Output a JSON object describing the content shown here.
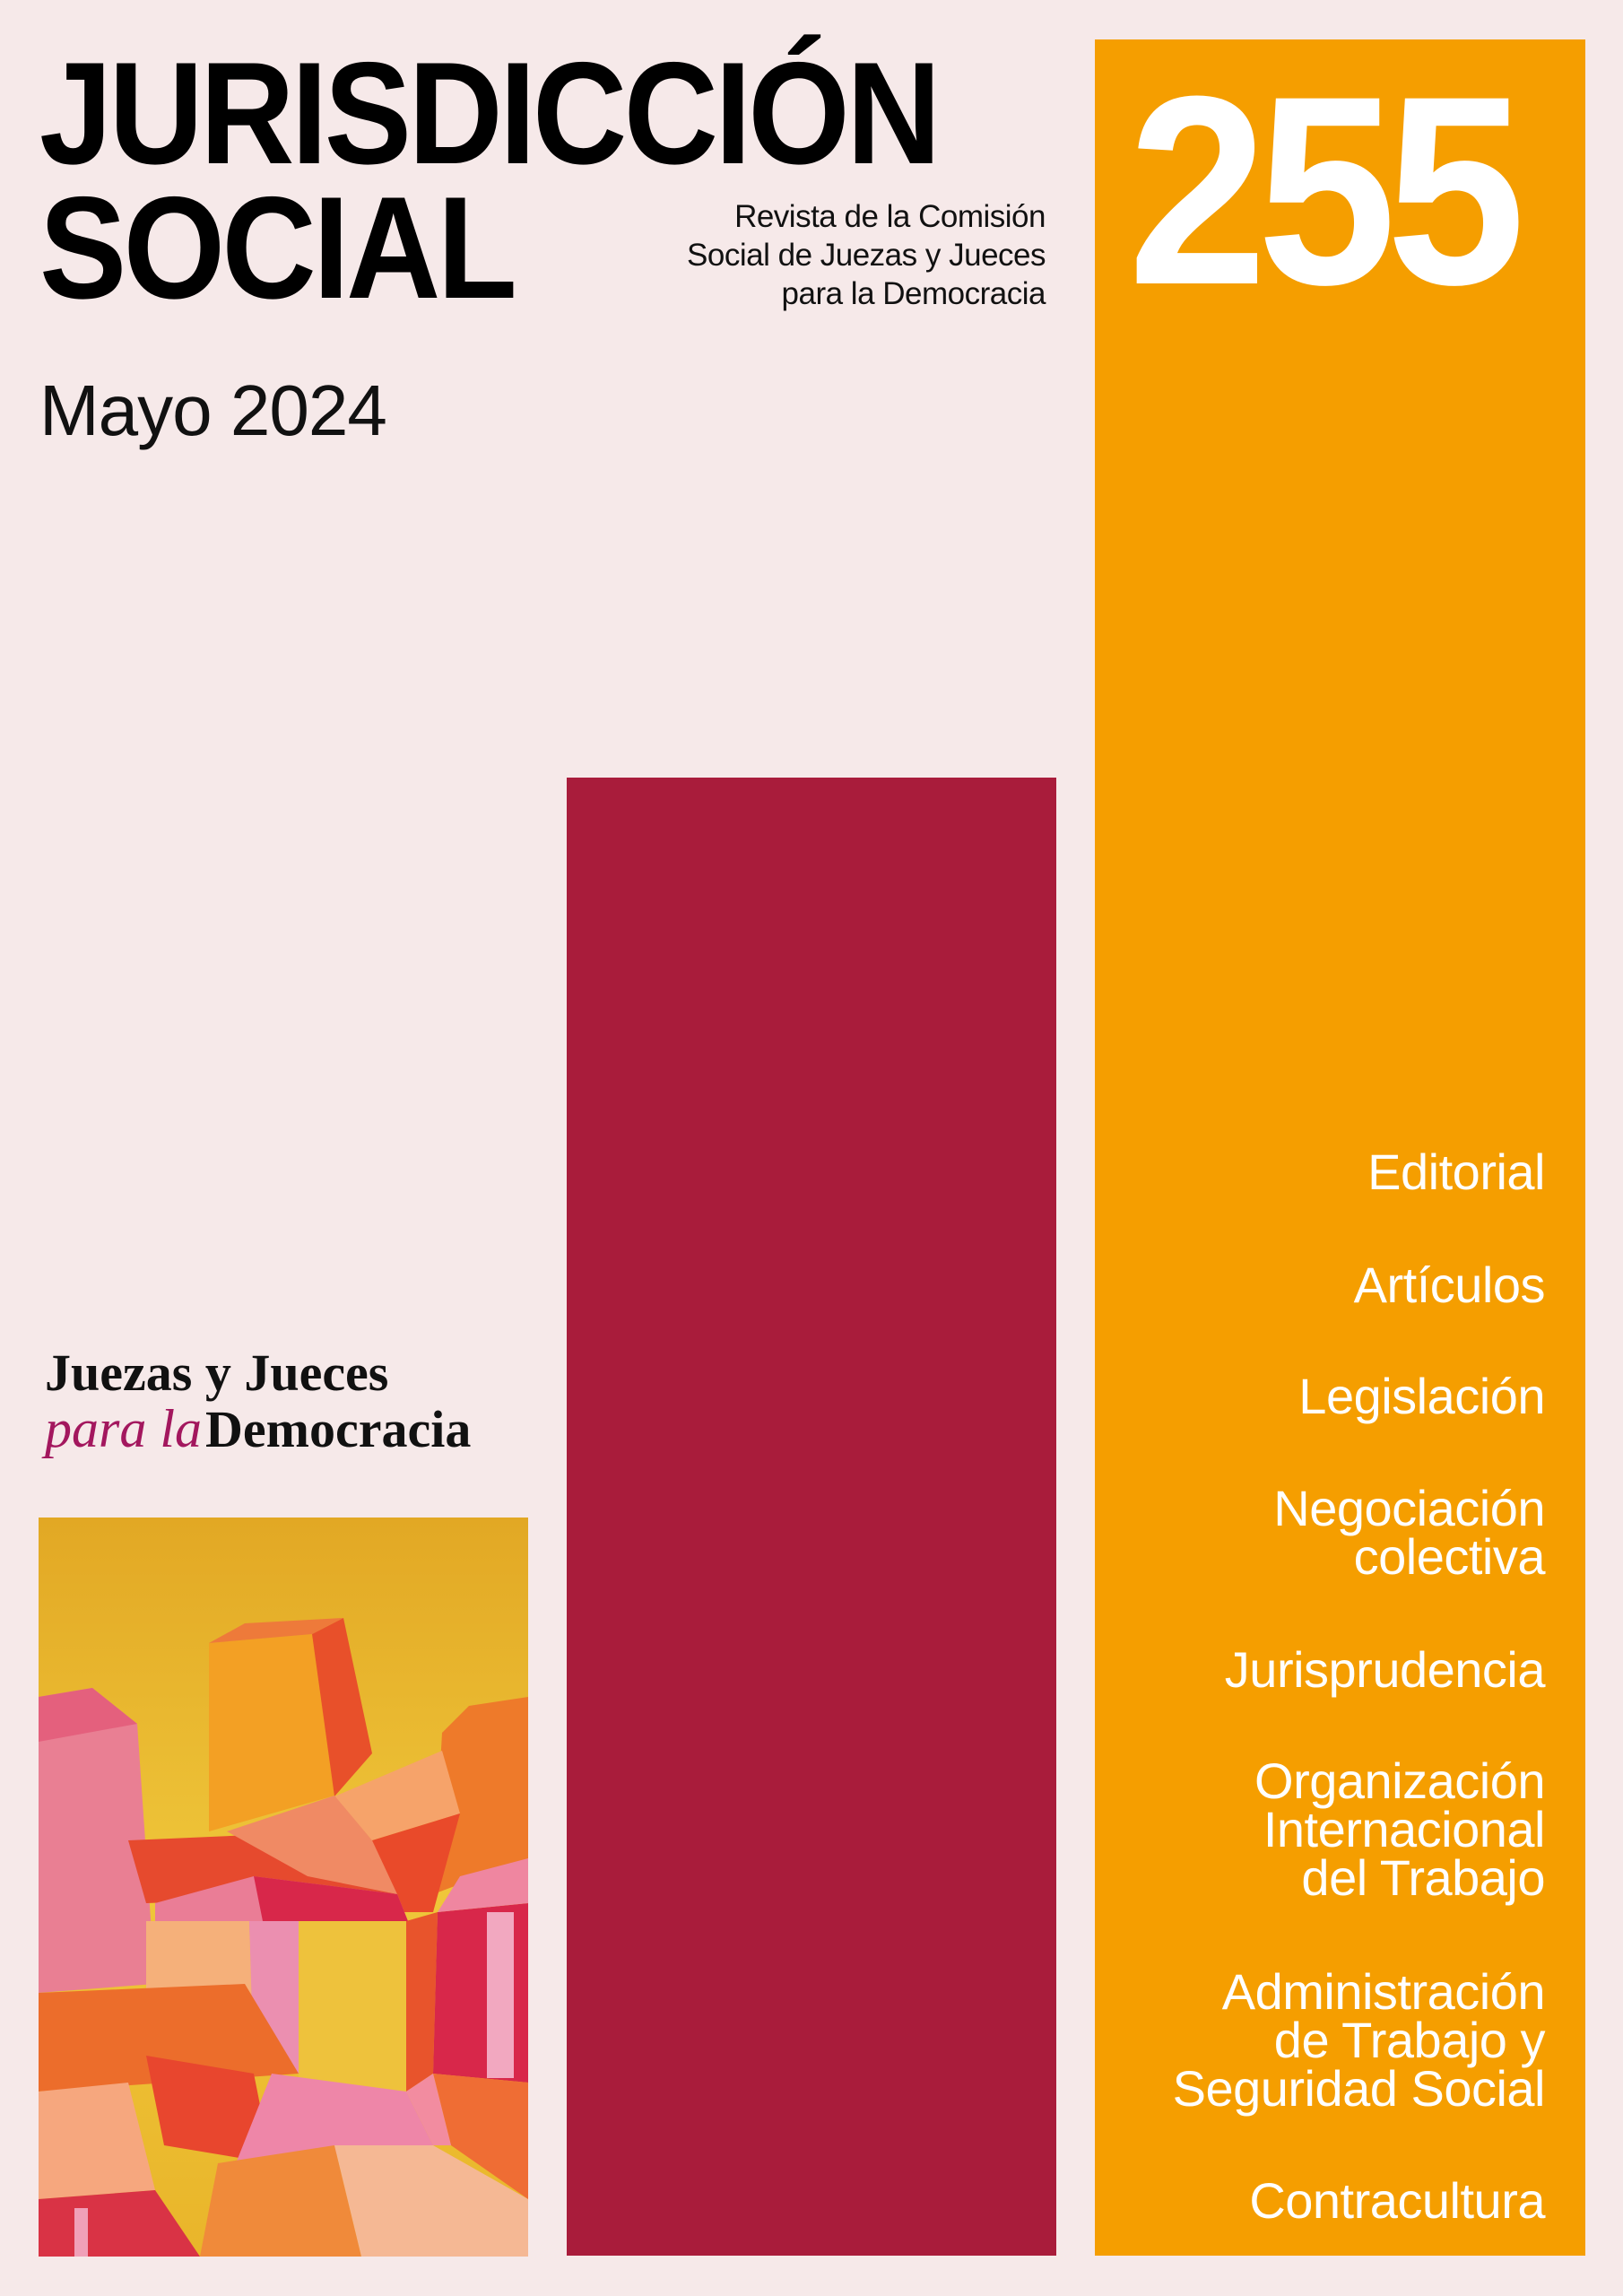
{
  "masthead": {
    "title_line1": "JURISDICCIÓN",
    "title_line2": "SOCIAL",
    "subtitle_lines": [
      "Revista de la Comisión",
      "Social de Juezas y Jueces",
      "para la Democracia"
    ],
    "date": "Mayo 2024"
  },
  "issue": {
    "number": "255"
  },
  "sections": [
    [
      "Editorial"
    ],
    [
      "Artículos"
    ],
    [
      "Legislación"
    ],
    [
      "Negociación",
      "colectiva"
    ],
    [
      "Jurisprudencia"
    ],
    [
      "Organización",
      "Internacional",
      "del Trabajo"
    ],
    [
      "Administración",
      "de Trabajo y",
      "Seguridad Social"
    ],
    [
      "Contracultura"
    ]
  ],
  "publisher_logo": {
    "line1": "Juezas y Jueces",
    "line2_italic": "para la",
    "line2_bold": "Democracia"
  },
  "colors": {
    "background": "#f6e9e9",
    "orange": "#f59e00",
    "crimson": "#a91c3b",
    "logo_accent": "#a3175e"
  },
  "cover_art": {
    "description_icon": "abstract-cubist-painting"
  }
}
